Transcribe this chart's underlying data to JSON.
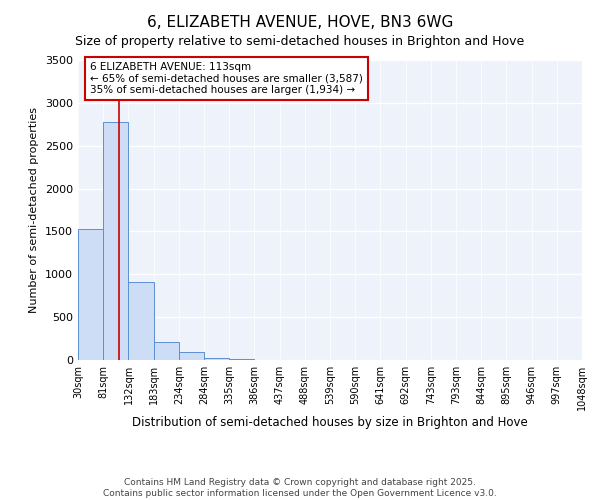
{
  "title": "6, ELIZABETH AVENUE, HOVE, BN3 6WG",
  "subtitle": "Size of property relative to semi-detached houses in Brighton and Hove",
  "xlabel": "Distribution of semi-detached houses by size in Brighton and Hove",
  "ylabel": "Number of semi-detached properties",
  "bar_color": "#ccddf5",
  "bar_edge_color": "#5b8fd4",
  "plot_bg_color": "#eef2fa",
  "fig_bg_color": "#ffffff",
  "grid_color": "#ffffff",
  "bin_edges": [
    30,
    81,
    132,
    183,
    234,
    284,
    335,
    386,
    437,
    488,
    539,
    590,
    641,
    692,
    743,
    793,
    844,
    895,
    946,
    997,
    1048
  ],
  "bar_heights": [
    1530,
    2780,
    910,
    215,
    95,
    28,
    12,
    0,
    0,
    0,
    0,
    0,
    0,
    0,
    0,
    0,
    0,
    0,
    0,
    0
  ],
  "property_size": 113,
  "red_line_color": "#cc0000",
  "annotation_line1": "6 ELIZABETH AVENUE: 113sqm",
  "annotation_line2": "← 65% of semi-detached houses are smaller (3,587)",
  "annotation_line3": "35% of semi-detached houses are larger (1,934) →",
  "annotation_box_color": "#ffffff",
  "annotation_border_color": "#cc0000",
  "ylim": [
    0,
    3500
  ],
  "yticks": [
    0,
    500,
    1000,
    1500,
    2000,
    2500,
    3000,
    3500
  ],
  "tick_labels": [
    "30sqm",
    "81sqm",
    "132sqm",
    "183sqm",
    "234sqm",
    "284sqm",
    "335sqm",
    "386sqm",
    "437sqm",
    "488sqm",
    "539sqm",
    "590sqm",
    "641sqm",
    "692sqm",
    "743sqm",
    "793sqm",
    "844sqm",
    "895sqm",
    "946sqm",
    "997sqm",
    "1048sqm"
  ],
  "footnote": "Contains HM Land Registry data © Crown copyright and database right 2025.\nContains public sector information licensed under the Open Government Licence v3.0.",
  "title_fontsize": 11,
  "subtitle_fontsize": 9,
  "annotation_fontsize": 7.5,
  "tick_fontsize": 7,
  "ylabel_fontsize": 8,
  "xlabel_fontsize": 8.5,
  "footnote_fontsize": 6.5,
  "ytick_fontsize": 8
}
